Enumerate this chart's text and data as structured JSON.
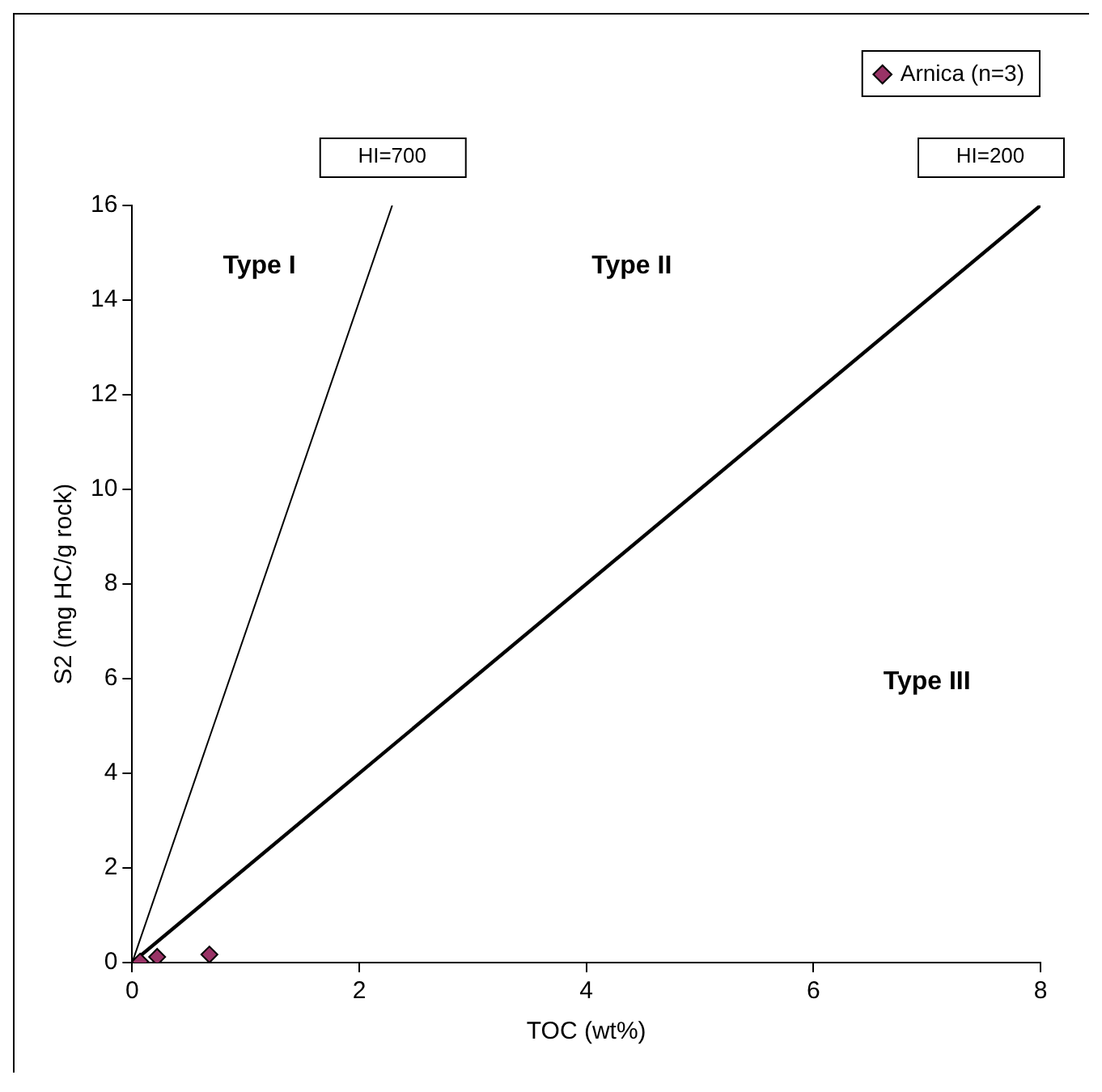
{
  "chart_data": {
    "type": "scatter",
    "xlabel": "TOC (wt%)",
    "ylabel": "S2 (mg HC/g rock)",
    "xlim": [
      0,
      8
    ],
    "xticks": [
      0,
      2,
      4,
      6,
      8
    ],
    "ylim": [
      0,
      16
    ],
    "yticks": [
      0,
      2,
      4,
      6,
      8,
      10,
      12,
      14,
      16
    ],
    "grid": false,
    "legend": "top right",
    "series": [
      {
        "name": "Arnica (n=3)",
        "marker": "diamond",
        "color": "#993366",
        "x": [
          0.07,
          0.22,
          0.68
        ],
        "values": [
          0.02,
          0.12,
          0.17
        ]
      },
      {
        "name": "HI=700",
        "type": "line",
        "marker": "none",
        "color": "#000000",
        "x": [
          0,
          2.29
        ],
        "values": [
          0,
          16
        ]
      },
      {
        "name": "HI=200",
        "type": "line",
        "marker": "none",
        "color": "#000000",
        "x": [
          0,
          8
        ],
        "values": [
          0,
          16
        ]
      }
    ],
    "annotations": [
      "Type I",
      "Type II",
      "Type III"
    ]
  }
}
